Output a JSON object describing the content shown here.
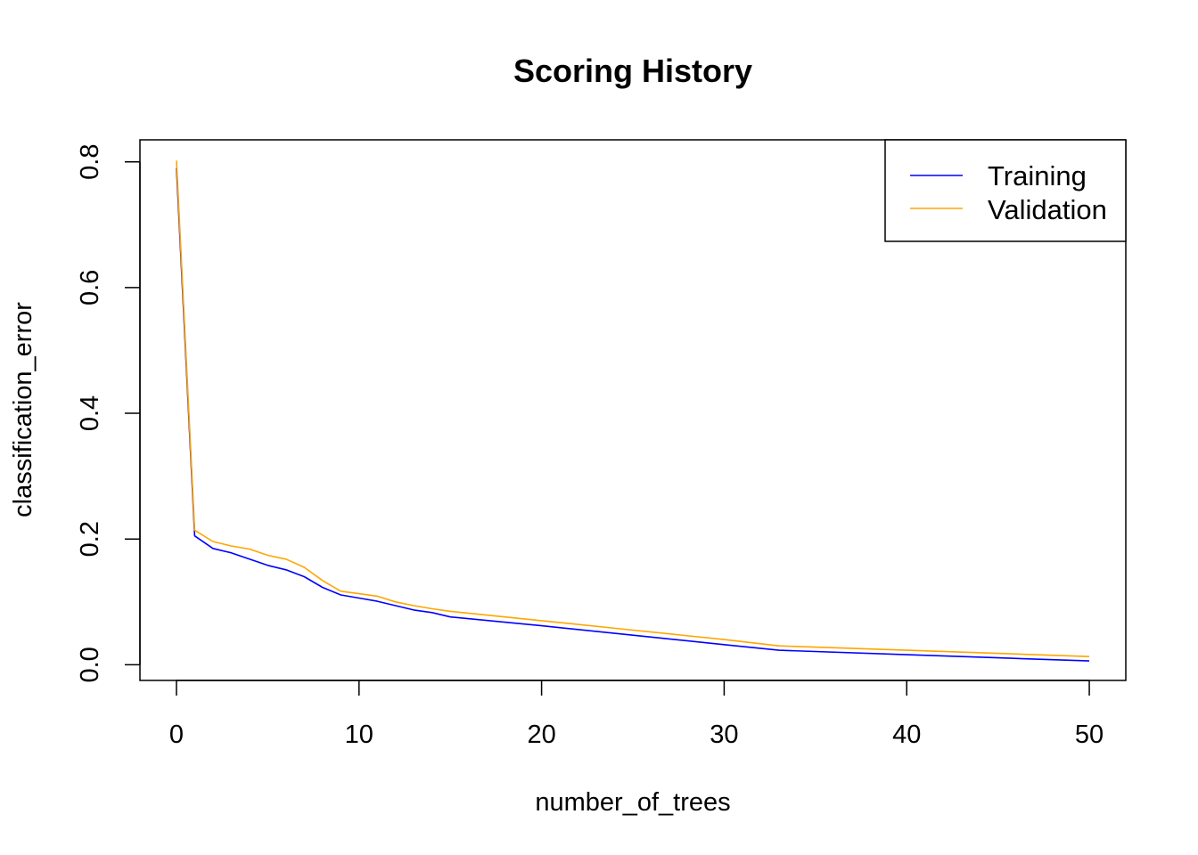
{
  "chart_data": {
    "type": "line",
    "title": "Scoring History",
    "xlabel": "number_of_trees",
    "ylabel": "classification_error",
    "xlim": [
      -2,
      52
    ],
    "ylim": [
      -0.025,
      0.835
    ],
    "x_ticks": [
      0,
      10,
      20,
      30,
      40,
      50
    ],
    "y_ticks": [
      0.0,
      0.2,
      0.4,
      0.6,
      0.8
    ],
    "x_tick_labels": [
      "0",
      "10",
      "20",
      "30",
      "40",
      "50"
    ],
    "y_tick_labels": [
      "0.0",
      "0.2",
      "0.4",
      "0.6",
      "0.8"
    ],
    "grid": false,
    "legend_position": "top-right",
    "series": [
      {
        "name": "Training",
        "color": "#0000ff",
        "x": [
          0,
          1,
          2,
          3,
          4,
          5,
          6,
          7,
          8,
          9,
          10,
          11,
          12,
          13,
          14,
          15,
          20,
          25,
          30,
          33,
          40,
          45,
          50
        ],
        "y": [
          0.79,
          0.205,
          0.185,
          0.178,
          0.168,
          0.158,
          0.151,
          0.14,
          0.123,
          0.111,
          0.106,
          0.101,
          0.094,
          0.087,
          0.083,
          0.076,
          0.062,
          0.047,
          0.032,
          0.023,
          0.016,
          0.011,
          0.006
        ]
      },
      {
        "name": "Validation",
        "color": "#ffa500",
        "x": [
          0,
          1,
          2,
          3,
          4,
          5,
          6,
          7,
          8,
          9,
          10,
          11,
          12,
          13,
          14,
          15,
          20,
          25,
          30,
          33,
          40,
          45,
          50
        ],
        "y": [
          0.802,
          0.214,
          0.196,
          0.189,
          0.184,
          0.174,
          0.168,
          0.155,
          0.134,
          0.117,
          0.113,
          0.109,
          0.1,
          0.094,
          0.089,
          0.085,
          0.07,
          0.055,
          0.04,
          0.03,
          0.023,
          0.018,
          0.013
        ]
      }
    ]
  }
}
